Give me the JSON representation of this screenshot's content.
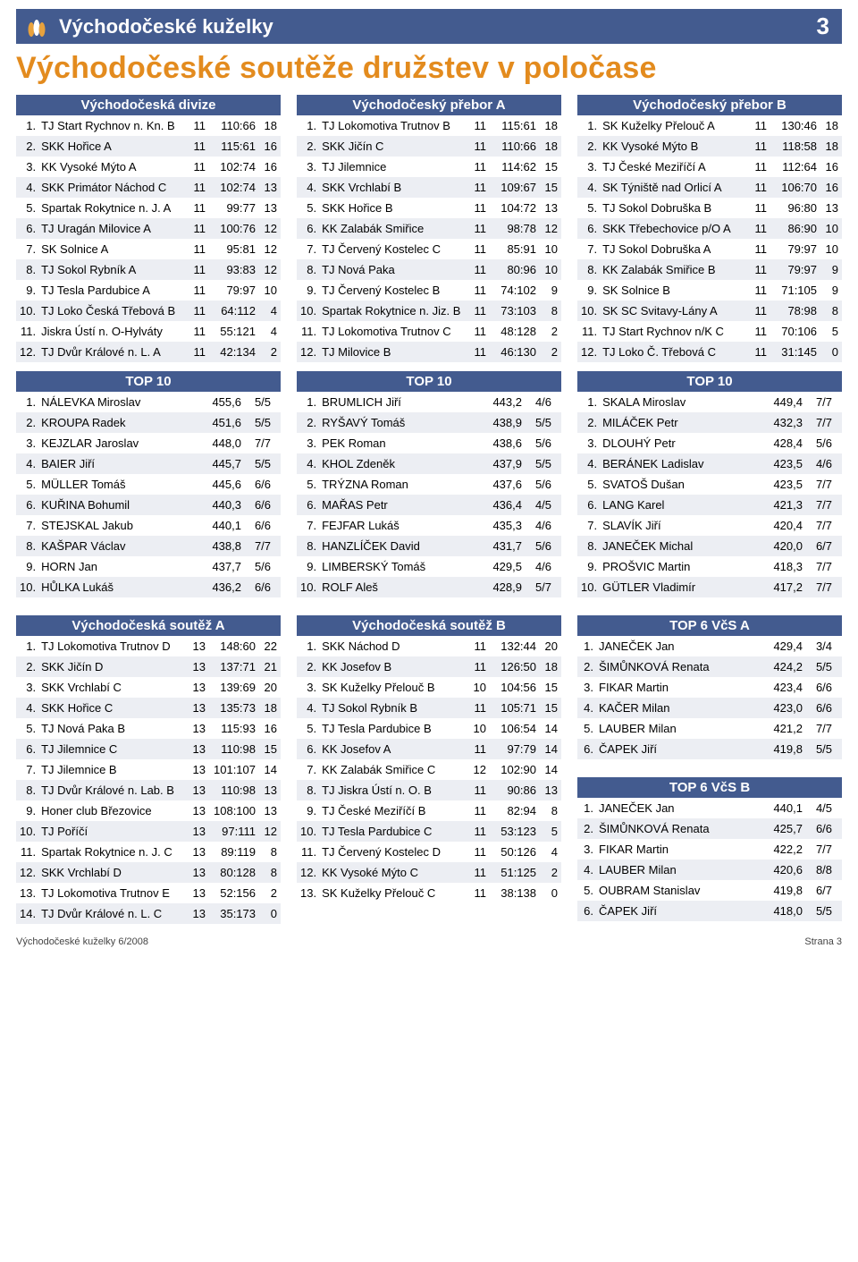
{
  "header": {
    "title": "Východočeské kuželky",
    "page_num": "3"
  },
  "main_title": "Východočeské soutěže družstev v poločase",
  "footer": {
    "issue": "Východočeské kuželky 6/2008",
    "page_label": "Strana 3"
  },
  "groups": {
    "divize": {
      "title": "Východočeská divize",
      "rows": [
        [
          "1.",
          "TJ Start Rychnov n. Kn. B",
          "11",
          "110:66",
          "18"
        ],
        [
          "2.",
          "SKK Hořice A",
          "11",
          "115:61",
          "16"
        ],
        [
          "3.",
          "KK Vysoké Mýto A",
          "11",
          "102:74",
          "16"
        ],
        [
          "4.",
          "SKK Primátor Náchod C",
          "11",
          "102:74",
          "13"
        ],
        [
          "5.",
          "Spartak Rokytnice n. J. A",
          "11",
          "99:77",
          "13"
        ],
        [
          "6.",
          "TJ Uragán Milovice A",
          "11",
          "100:76",
          "12"
        ],
        [
          "7.",
          "SK Solnice A",
          "11",
          "95:81",
          "12"
        ],
        [
          "8.",
          "TJ Sokol Rybník A",
          "11",
          "93:83",
          "12"
        ],
        [
          "9.",
          "TJ Tesla Pardubice A",
          "11",
          "79:97",
          "10"
        ],
        [
          "10.",
          "TJ Loko Česká Třebová B",
          "11",
          "64:112",
          "4"
        ],
        [
          "11.",
          "Jiskra Ústí n. O-Hylváty",
          "11",
          "55:121",
          "4"
        ],
        [
          "12.",
          "TJ Dvůr Králové n. L. A",
          "11",
          "42:134",
          "2"
        ]
      ],
      "top10_title": "TOP 10",
      "top10": [
        [
          "1.",
          "NÁLEVKA Miroslav",
          "455,6",
          "5/5"
        ],
        [
          "2.",
          "KROUPA Radek",
          "451,6",
          "5/5"
        ],
        [
          "3.",
          "KEJZLAR Jaroslav",
          "448,0",
          "7/7"
        ],
        [
          "4.",
          "BAIER Jiří",
          "445,7",
          "5/5"
        ],
        [
          "5.",
          "MÜLLER Tomáš",
          "445,6",
          "6/6"
        ],
        [
          "6.",
          "KUŘINA Bohumil",
          "440,3",
          "6/6"
        ],
        [
          "7.",
          "STEJSKAL Jakub",
          "440,1",
          "6/6"
        ],
        [
          "8.",
          "KAŠPAR Václav",
          "438,8",
          "7/7"
        ],
        [
          "9.",
          "HORN Jan",
          "437,7",
          "5/6"
        ],
        [
          "10.",
          "HŮLKA Lukáš",
          "436,2",
          "6/6"
        ]
      ]
    },
    "preborA": {
      "title": "Východočeský přebor A",
      "rows": [
        [
          "1.",
          "TJ Lokomotiva Trutnov B",
          "11",
          "115:61",
          "18"
        ],
        [
          "2.",
          "SKK Jičín C",
          "11",
          "110:66",
          "18"
        ],
        [
          "3.",
          "TJ Jilemnice",
          "11",
          "114:62",
          "15"
        ],
        [
          "4.",
          "SKK Vrchlabí B",
          "11",
          "109:67",
          "15"
        ],
        [
          "5.",
          "SKK Hořice B",
          "11",
          "104:72",
          "13"
        ],
        [
          "6.",
          "KK Zalabák Smiřice",
          "11",
          "98:78",
          "12"
        ],
        [
          "7.",
          "TJ Červený Kostelec C",
          "11",
          "85:91",
          "10"
        ],
        [
          "8.",
          "TJ Nová Paka",
          "11",
          "80:96",
          "10"
        ],
        [
          "9.",
          "TJ Červený Kostelec B",
          "11",
          "74:102",
          "9"
        ],
        [
          "10.",
          "Spartak Rokytnice n. Jiz. B",
          "11",
          "73:103",
          "8"
        ],
        [
          "11.",
          "TJ Lokomotiva Trutnov C",
          "11",
          "48:128",
          "2"
        ],
        [
          "12.",
          "TJ Milovice B",
          "11",
          "46:130",
          "2"
        ]
      ],
      "top10_title": "TOP 10",
      "top10": [
        [
          "1.",
          "BRUMLICH Jiří",
          "443,2",
          "4/6"
        ],
        [
          "2.",
          "RYŠAVÝ Tomáš",
          "438,9",
          "5/5"
        ],
        [
          "3.",
          "PEK Roman",
          "438,6",
          "5/6"
        ],
        [
          "4.",
          "KHOL Zdeněk",
          "437,9",
          "5/5"
        ],
        [
          "5.",
          "TRÝZNA Roman",
          "437,6",
          "5/6"
        ],
        [
          "6.",
          "MAŘAS Petr",
          "436,4",
          "4/5"
        ],
        [
          "7.",
          "FEJFAR Lukáš",
          "435,3",
          "4/6"
        ],
        [
          "8.",
          "HANZLÍČEK David",
          "431,7",
          "5/6"
        ],
        [
          "9.",
          "LIMBERSKÝ Tomáš",
          "429,5",
          "4/6"
        ],
        [
          "10.",
          "ROLF Aleš",
          "428,9",
          "5/7"
        ]
      ]
    },
    "preborB": {
      "title": "Východočeský přebor B",
      "rows": [
        [
          "1.",
          "SK Kuželky Přelouč A",
          "11",
          "130:46",
          "18"
        ],
        [
          "2.",
          "KK Vysoké Mýto B",
          "11",
          "118:58",
          "18"
        ],
        [
          "3.",
          "TJ České Meziříčí A",
          "11",
          "112:64",
          "16"
        ],
        [
          "4.",
          "SK Týniště nad Orlicí A",
          "11",
          "106:70",
          "16"
        ],
        [
          "5.",
          "TJ Sokol Dobruška B",
          "11",
          "96:80",
          "13"
        ],
        [
          "6.",
          "SKK Třebechovice p/O A",
          "11",
          "86:90",
          "10"
        ],
        [
          "7.",
          "TJ Sokol Dobruška A",
          "11",
          "79:97",
          "10"
        ],
        [
          "8.",
          "KK Zalabák Smiřice B",
          "11",
          "79:97",
          "9"
        ],
        [
          "9.",
          "SK Solnice B",
          "11",
          "71:105",
          "9"
        ],
        [
          "10.",
          "SK SC Svitavy-Lány A",
          "11",
          "78:98",
          "8"
        ],
        [
          "11.",
          "TJ Start Rychnov n/K C",
          "11",
          "70:106",
          "5"
        ],
        [
          "12.",
          "TJ Loko Č. Třebová C",
          "11",
          "31:145",
          "0"
        ]
      ],
      "top10_title": "TOP 10",
      "top10": [
        [
          "1.",
          "SKALA Miroslav",
          "449,4",
          "7/7"
        ],
        [
          "2.",
          "MILÁČEK Petr",
          "432,3",
          "7/7"
        ],
        [
          "3.",
          "DLOUHÝ Petr",
          "428,4",
          "5/6"
        ],
        [
          "4.",
          "BERÁNEK Ladislav",
          "423,5",
          "4/6"
        ],
        [
          "5.",
          "SVATOŠ Dušan",
          "423,5",
          "7/7"
        ],
        [
          "6.",
          "LANG Karel",
          "421,3",
          "7/7"
        ],
        [
          "7.",
          "SLAVÍK Jiří",
          "420,4",
          "7/7"
        ],
        [
          "8.",
          "JANEČEK Michal",
          "420,0",
          "6/7"
        ],
        [
          "9.",
          "PROŠVIC Martin",
          "418,3",
          "7/7"
        ],
        [
          "10.",
          "GÜTLER Vladimír",
          "417,2",
          "7/7"
        ]
      ]
    },
    "soutezA": {
      "title": "Východočeská soutěž A",
      "rows": [
        [
          "1.",
          "TJ Lokomotiva Trutnov D",
          "13",
          "148:60",
          "22"
        ],
        [
          "2.",
          "SKK Jičín D",
          "13",
          "137:71",
          "21"
        ],
        [
          "3.",
          "SKK Vrchlabí C",
          "13",
          "139:69",
          "20"
        ],
        [
          "4.",
          "SKK Hořice C",
          "13",
          "135:73",
          "18"
        ],
        [
          "5.",
          "TJ  Nová Paka B",
          "13",
          "115:93",
          "16"
        ],
        [
          "6.",
          "TJ Jilemnice C",
          "13",
          "110:98",
          "15"
        ],
        [
          "7.",
          "TJ Jilemnice B",
          "13",
          "101:107",
          "14"
        ],
        [
          "8.",
          "TJ Dvůr Králové n. Lab. B",
          "13",
          "110:98",
          "13"
        ],
        [
          "9.",
          "Honer club Březovice",
          "13",
          "108:100",
          "13"
        ],
        [
          "10.",
          "TJ Poříčí",
          "13",
          "97:111",
          "12"
        ],
        [
          "11.",
          "Spartak Rokytnice n. J. C",
          "13",
          "89:119",
          "8"
        ],
        [
          "12.",
          "SKK Vrchlabí D",
          "13",
          "80:128",
          "8"
        ],
        [
          "13.",
          "TJ Lokomotiva Trutnov E",
          "13",
          "52:156",
          "2"
        ],
        [
          "14.",
          "TJ Dvůr Králové n. L. C",
          "13",
          "35:173",
          "0"
        ]
      ]
    },
    "soutezB": {
      "title": "Východočeská soutěž B",
      "rows": [
        [
          "1.",
          "SKK Náchod D",
          "11",
          "132:44",
          "20"
        ],
        [
          "2.",
          "KK Josefov B",
          "11",
          "126:50",
          "18"
        ],
        [
          "3.",
          "SK Kuželky Přelouč B",
          "10",
          "104:56",
          "15"
        ],
        [
          "4.",
          "TJ Sokol Rybník B",
          "11",
          "105:71",
          "15"
        ],
        [
          "5.",
          "TJ Tesla Pardubice B",
          "10",
          "106:54",
          "14"
        ],
        [
          "6.",
          "KK Josefov A",
          "11",
          "97:79",
          "14"
        ],
        [
          "7.",
          "KK Zalabák Smiřice C",
          "12",
          "102:90",
          "14"
        ],
        [
          "8.",
          "TJ Jiskra Ústí n. O. B",
          "11",
          "90:86",
          "13"
        ],
        [
          "9.",
          "TJ České Meziříčí B",
          "11",
          "82:94",
          "8"
        ],
        [
          "10.",
          "TJ Tesla Pardubice C",
          "11",
          "53:123",
          "5"
        ],
        [
          "11.",
          "TJ Červený Kostelec D",
          "11",
          "50:126",
          "4"
        ],
        [
          "12.",
          "KK Vysoké Mýto C",
          "11",
          "51:125",
          "2"
        ],
        [
          "13.",
          "SK Kuželky Přelouč C",
          "11",
          "38:138",
          "0"
        ]
      ]
    },
    "top6A": {
      "title": "TOP 6 VčS A",
      "rows": [
        [
          "1.",
          "JANEČEK Jan",
          "429,4",
          "3/4"
        ],
        [
          "2.",
          "ŠIMŮNKOVÁ Renata",
          "424,2",
          "5/5"
        ],
        [
          "3.",
          "FIKAR Martin",
          "423,4",
          "6/6"
        ],
        [
          "4.",
          "KAČER Milan",
          "423,0",
          "6/6"
        ],
        [
          "5.",
          "LAUBER Milan",
          "421,2",
          "7/7"
        ],
        [
          "6.",
          "ČAPEK Jiří",
          "419,8",
          "5/5"
        ]
      ]
    },
    "top6B": {
      "title": "TOP 6 VčS B",
      "rows": [
        [
          "1.",
          "JANEČEK Jan",
          "440,1",
          "4/5"
        ],
        [
          "2.",
          "ŠIMŮNKOVÁ Renata",
          "425,7",
          "6/6"
        ],
        [
          "3.",
          "FIKAR Martin",
          "422,2",
          "7/7"
        ],
        [
          "4.",
          "LAUBER Milan",
          "420,6",
          "8/8"
        ],
        [
          "5.",
          "OUBRAM Stanislav",
          "419,8",
          "6/7"
        ],
        [
          "6.",
          "ČAPEK Jiří",
          "418,0",
          "5/5"
        ]
      ]
    }
  }
}
